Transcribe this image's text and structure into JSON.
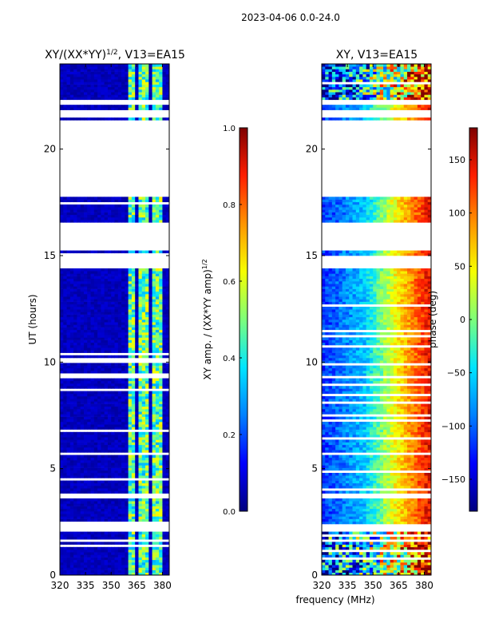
{
  "suptitle": "2023-04-06 0.0-24.0",
  "xlabel": "frequency (MHz)",
  "colors": {
    "ramp": [
      "#00007f",
      "#0000ff",
      "#0080ff",
      "#00e5ff",
      "#7dff7a",
      "#f6ff00",
      "#ff9400",
      "#ff1e00",
      "#7f0000"
    ],
    "background": "#ffffff"
  },
  "chart_data": [
    {
      "type": "heatmap",
      "title": "XY/(XX*YY)",
      "title_sup": "1/2",
      "title_suffix": ", V13=EA15",
      "xlabel": "",
      "ylabel": "UT (hours)",
      "xlim": [
        320,
        384
      ],
      "ylim": [
        0,
        24
      ],
      "xticks": [
        "320",
        "335",
        "350",
        "365",
        "380"
      ],
      "xtick_values": [
        320,
        335,
        350,
        365,
        380
      ],
      "yticks": [
        "0",
        "5",
        "10",
        "15",
        "20"
      ],
      "ytick_values": [
        0,
        5,
        10,
        15,
        20
      ],
      "colorbar": {
        "label": "XY amp. / (XX*YY amp)",
        "label_sup": "1/2",
        "range": [
          0.0,
          1.0
        ],
        "ticks": [
          "0.0",
          "0.2",
          "0.4",
          "0.6",
          "0.8",
          "1.0"
        ],
        "tick_values": [
          0.0,
          0.2,
          0.4,
          0.6,
          0.8,
          1.0
        ]
      },
      "data_gaps_hours": [
        [
          2.05,
          2.45
        ],
        [
          3.55,
          3.85
        ],
        [
          14.45,
          15.05
        ],
        [
          15.3,
          16.5
        ],
        [
          17.8,
          21.3
        ],
        [
          21.5,
          21.85
        ],
        [
          22.1,
          22.35
        ]
      ],
      "bright_channel_ranges_mhz": [
        [
          361,
          364
        ],
        [
          366,
          367.5
        ],
        [
          369,
          372
        ],
        [
          374,
          376
        ],
        [
          377,
          379.5
        ]
      ],
      "typical_values": {
        "background": 0.05,
        "bright_channels": 0.45
      }
    },
    {
      "type": "heatmap",
      "title": "XY, V13=EA15",
      "xlabel": "",
      "ylabel": "",
      "xlim": [
        320,
        384
      ],
      "ylim": [
        0,
        24
      ],
      "xticks": [
        "320",
        "335",
        "350",
        "365",
        "380"
      ],
      "xtick_values": [
        320,
        335,
        350,
        365,
        380
      ],
      "yticks": [
        "0",
        "5",
        "10",
        "15",
        "20"
      ],
      "ytick_values": [
        0,
        5,
        10,
        15,
        20
      ],
      "colorbar": {
        "label": "phase (deg)",
        "range": [
          -180,
          180
        ],
        "ticks": [
          "−150",
          "−100",
          "−50",
          "0",
          "50",
          "100",
          "150"
        ],
        "tick_values": [
          -150,
          -100,
          -50,
          0,
          50,
          100,
          150
        ]
      },
      "data_gaps_hours": [
        [
          2.05,
          2.45
        ],
        [
          3.55,
          3.85
        ],
        [
          14.45,
          15.05
        ],
        [
          15.3,
          16.5
        ],
        [
          17.8,
          21.3
        ],
        [
          21.5,
          21.85
        ],
        [
          22.1,
          22.35
        ]
      ],
      "phase_trend": {
        "low_freq_deg": -120,
        "mid_freq_deg": 40,
        "high_freq_deg": 150
      }
    }
  ]
}
